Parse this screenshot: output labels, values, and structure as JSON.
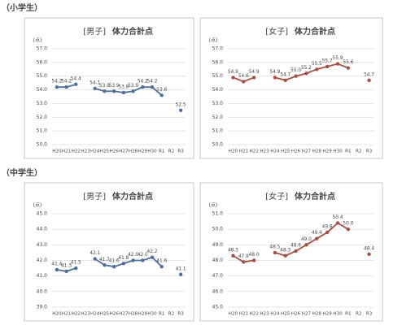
{
  "sections": [
    "（小学生）",
    "（中学生）"
  ],
  "chart_data": [
    {
      "type": "line",
      "group": "[男子]",
      "title": "体力合計点",
      "y_unit": "(点)",
      "categories": [
        "H20",
        "H21",
        "H22",
        "H23",
        "H24",
        "H25",
        "H26",
        "H27",
        "H28",
        "H29",
        "H30",
        "R1",
        "R2",
        "R3"
      ],
      "values": [
        54.2,
        54.2,
        54.4,
        null,
        54.1,
        53.9,
        53.9,
        53.8,
        53.9,
        54.2,
        54.2,
        53.6,
        null,
        52.5
      ],
      "value_labels": [
        "54.2",
        "54.2",
        "54.4",
        null,
        "54.1",
        "53.9",
        "53.9",
        "53.8",
        "53.9",
        "54.2",
        "54.2",
        "53.6",
        null,
        "52.5"
      ],
      "color": "#4f6e9c",
      "grid": true,
      "ylim": [
        50,
        57
      ],
      "yticks": [
        {
          "value": 50,
          "label": "50.0"
        },
        {
          "value": 51,
          "label": "51.0"
        },
        {
          "value": 52,
          "label": "52.0"
        },
        {
          "value": 53,
          "label": "53.0"
        },
        {
          "value": 54,
          "label": "54.0"
        },
        {
          "value": 55,
          "label": "55.0"
        },
        {
          "value": 56,
          "label": "56.0"
        },
        {
          "value": 57,
          "label": "57.0"
        }
      ]
    },
    {
      "type": "line",
      "group": "[女子]",
      "title": "体力合計点",
      "y_unit": "(点)",
      "categories": [
        "H20",
        "H21",
        "H22",
        "H23",
        "H24",
        "H25",
        "H26",
        "H27",
        "H28",
        "H29",
        "H30",
        "R1",
        "R2",
        "R3"
      ],
      "values": [
        54.9,
        54.6,
        54.9,
        null,
        54.9,
        54.7,
        55.0,
        55.2,
        55.5,
        55.7,
        55.9,
        55.6,
        null,
        54.7
      ],
      "value_labels": [
        "54.9",
        "54.6",
        "54.9",
        null,
        "54.9",
        "54.7",
        "55.0",
        "55.2",
        "55.5",
        "55.7",
        "55.9",
        "55.6",
        null,
        "54.7"
      ],
      "color": "#a64f45",
      "grid": true,
      "ylim": [
        50,
        57
      ],
      "yticks": [
        {
          "value": 50,
          "label": "50.0"
        },
        {
          "value": 51,
          "label": "51.0"
        },
        {
          "value": 52,
          "label": "52.0"
        },
        {
          "value": 53,
          "label": "53.0"
        },
        {
          "value": 54,
          "label": "54.0"
        },
        {
          "value": 55,
          "label": "55.0"
        },
        {
          "value": 56,
          "label": "56.0"
        },
        {
          "value": 57,
          "label": "57.0"
        }
      ]
    },
    {
      "type": "line",
      "group": "[男子]",
      "title": "体力合計点",
      "y_unit": "(点)",
      "categories": [
        "H20",
        "H21",
        "H22",
        "H23",
        "H24",
        "H25",
        "H26",
        "H27",
        "H28",
        "H29",
        "H30",
        "R1",
        "R2",
        "R3"
      ],
      "values": [
        41.4,
        41.3,
        41.5,
        null,
        42.1,
        41.7,
        41.6,
        41.8,
        42.0,
        42.0,
        42.2,
        41.6,
        null,
        41.1
      ],
      "value_labels": [
        "41.4",
        "41.3",
        "41.5",
        null,
        "42.1",
        "41.7",
        "41.6",
        "41.8",
        "42.0",
        "42.0",
        "42.2",
        "41.6",
        null,
        "41.1"
      ],
      "color": "#4f6e9c",
      "grid": true,
      "ylim": [
        39,
        45
      ],
      "yticks": [
        {
          "value": 39,
          "label": "39.0"
        },
        {
          "value": 40,
          "label": "40.0"
        },
        {
          "value": 41,
          "label": "41.0"
        },
        {
          "value": 42,
          "label": "42.0"
        },
        {
          "value": 43,
          "label": "43.0"
        },
        {
          "value": 44,
          "label": "44.0"
        },
        {
          "value": 45,
          "label": "45.0"
        }
      ]
    },
    {
      "type": "line",
      "group": "[女子]",
      "title": "体力合計点",
      "y_unit": "(点)",
      "categories": [
        "H20",
        "H21",
        "H22",
        "H23",
        "H24",
        "H25",
        "H26",
        "H27",
        "H28",
        "H29",
        "H30",
        "R1",
        "R2",
        "R3"
      ],
      "values": [
        48.3,
        47.9,
        48.0,
        null,
        48.5,
        48.3,
        48.6,
        49.0,
        49.4,
        49.8,
        50.4,
        50.0,
        null,
        48.4
      ],
      "value_labels": [
        "48.3",
        "47.9",
        "48.0",
        null,
        "48.5",
        "48.3",
        "48.6",
        "49.0",
        "49.4",
        "49.8",
        "50.4",
        "50.0",
        null,
        "48.4"
      ],
      "color": "#a64f45",
      "grid": true,
      "ylim": [
        45,
        51
      ],
      "yticks": [
        {
          "value": 45,
          "label": "45.0"
        },
        {
          "value": 46,
          "label": "46.0"
        },
        {
          "value": 47,
          "label": "47.0"
        },
        {
          "value": 48,
          "label": "48.0"
        },
        {
          "value": 49,
          "label": "49.0"
        },
        {
          "value": 50,
          "label": "50.0"
        },
        {
          "value": 51,
          "label": "51.0"
        }
      ]
    }
  ]
}
